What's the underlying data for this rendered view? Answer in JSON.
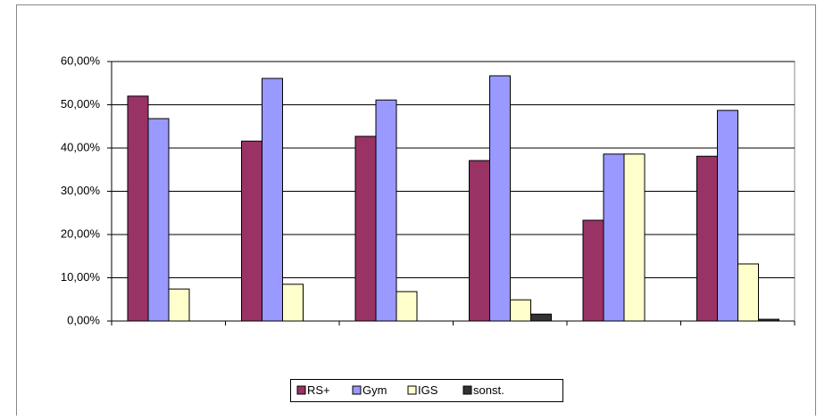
{
  "chart_data": {
    "type": "bar",
    "categories": [
      null,
      null,
      null,
      null,
      null,
      null
    ],
    "series": [
      {
        "name": "RS+",
        "color": "#993366",
        "values": [
          52.0,
          41.6,
          42.7,
          37.1,
          23.3,
          38.1
        ]
      },
      {
        "name": "Gym",
        "color": "#9999ff",
        "values": [
          46.8,
          56.1,
          51.1,
          56.7,
          38.6,
          48.7
        ]
      },
      {
        "name": "IGS",
        "color": "#ffffcc",
        "values": [
          7.4,
          8.5,
          6.8,
          4.9,
          38.6,
          13.2
        ]
      },
      {
        "name": "sonst.",
        "color": "#333333",
        "values": [
          0,
          0,
          0,
          1.6,
          0,
          0.4
        ]
      }
    ],
    "ylim": [
      0,
      60
    ],
    "yticks": [
      {
        "value": 0,
        "label": "0,00%"
      },
      {
        "value": 10,
        "label": "10,00%"
      },
      {
        "value": 20,
        "label": "20,00%"
      },
      {
        "value": 30,
        "label": "30,00%"
      },
      {
        "value": 40,
        "label": "40,00%"
      },
      {
        "value": 50,
        "label": "50,00%"
      },
      {
        "value": 60,
        "label": "60,00%"
      }
    ],
    "grid": true,
    "legend": "bottom"
  }
}
